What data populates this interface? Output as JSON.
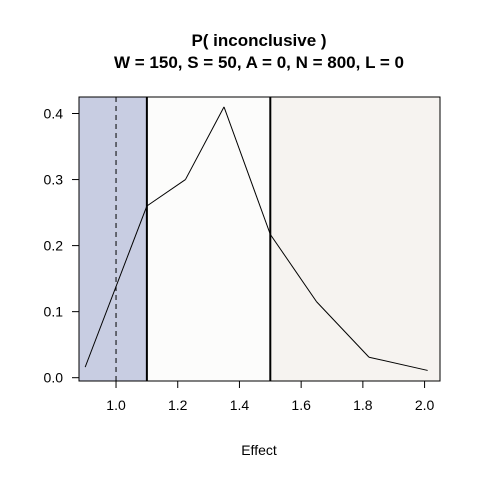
{
  "chart_data": {
    "type": "line",
    "title": "P( inconclusive )",
    "subtitle": "W = 150, S = 50, A = 0, N = 800, L = 0",
    "xlabel": "Effect",
    "ylabel": "",
    "xlim": [
      0.88,
      2.05
    ],
    "ylim": [
      -0.005,
      0.425
    ],
    "xticks": [
      1.0,
      1.2,
      1.4,
      1.6,
      1.8,
      2.0
    ],
    "xtick_labels": [
      "1.0",
      "1.2",
      "1.4",
      "1.6",
      "1.8",
      "2.0"
    ],
    "yticks": [
      0.0,
      0.1,
      0.2,
      0.3,
      0.4
    ],
    "ytick_labels": [
      "0.0",
      "0.1",
      "0.2",
      "0.3",
      "0.4"
    ],
    "series": [
      {
        "x": [
          0.9,
          1.1,
          1.225,
          1.35,
          1.5,
          1.65,
          1.82,
          2.01
        ],
        "y": [
          0.016,
          0.26,
          0.3,
          0.41,
          0.217,
          0.115,
          0.031,
          0.011
        ]
      }
    ],
    "regions": [
      {
        "from": 0.88,
        "to": 1.1,
        "color": "#c8cde2"
      },
      {
        "from": 1.1,
        "to": 1.5,
        "color": "#fcfcfb"
      },
      {
        "from": 1.5,
        "to": 2.05,
        "color": "#f6f3f0"
      }
    ],
    "vlines": [
      {
        "x": 1.0,
        "style": "dashed"
      },
      {
        "x": 1.1,
        "style": "solid"
      },
      {
        "x": 1.5,
        "style": "solid"
      }
    ],
    "grid": false,
    "legend": "none"
  }
}
